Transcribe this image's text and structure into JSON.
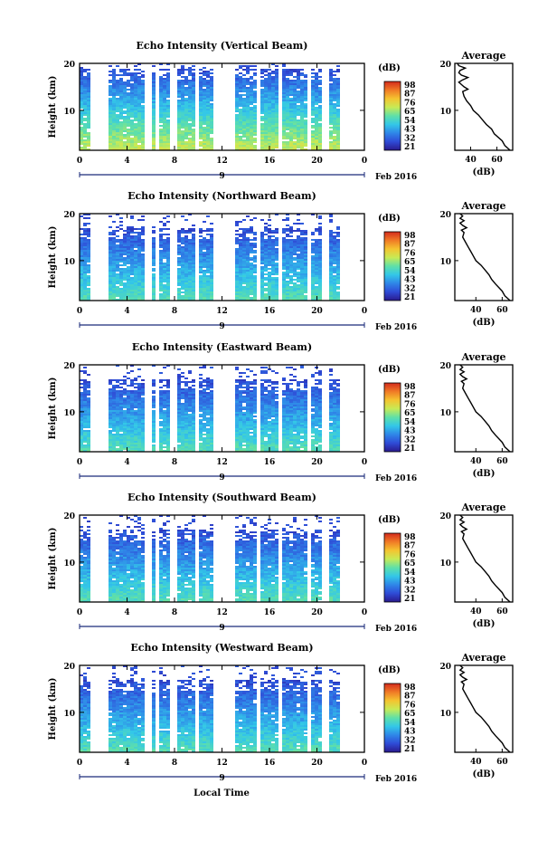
{
  "figure": {
    "colorbar_unit": "(dB)",
    "colorbar_ticks": [
      "98",
      "87",
      "76",
      "65",
      "54",
      "43",
      "32",
      "21"
    ],
    "average_title": "Average",
    "average_xlabel": "(dB)",
    "ylabel": "Height (km)",
    "hour_ticks": [
      "0",
      "4",
      "8",
      "12",
      "16",
      "20",
      "0"
    ],
    "date_label": "9",
    "month_label": "Feb 2016",
    "xlabel": "Local Time",
    "colorscale": [
      "#2a1a8c",
      "#2f4bd6",
      "#2f86e8",
      "#33c7e8",
      "#5fe0a8",
      "#c8ea55",
      "#f4c430",
      "#f07a26",
      "#d42a1c"
    ]
  },
  "chart_data": [
    {
      "type": "heatmap",
      "title": "Echo Intensity (Vertical Beam)",
      "ylabel": "Height (km)",
      "y_ticks": [
        "20",
        "10"
      ],
      "ylim": [
        1.5,
        20
      ],
      "x_ticks": [
        "0",
        "4",
        "8",
        "12",
        "16",
        "20",
        "0"
      ],
      "xlim_hours": [
        0,
        24
      ],
      "color_range_db": [
        21,
        98
      ],
      "data_gaps_hours": [
        [
          1.0,
          2.4
        ],
        [
          5.5,
          6.0
        ],
        [
          6.4,
          6.8
        ],
        [
          7.5,
          8.1
        ],
        [
          9.8,
          10.2
        ],
        [
          11.2,
          13.0
        ],
        [
          14.8,
          15.2
        ],
        [
          16.8,
          17.2
        ],
        [
          19.2,
          19.6
        ],
        [
          20.5,
          20.9
        ],
        [
          22.0,
          24.0
        ]
      ],
      "noise_top_km": 19,
      "surface_db": 70,
      "average_profile": {
        "title": "Average",
        "xlabel": "(dB)",
        "x_ticks": [
          "40",
          "60"
        ],
        "y_ticks": [
          "20",
          "10"
        ],
        "xlim": [
          28,
          72
        ],
        "ylim": [
          1.5,
          20
        ],
        "height_km": [
          1.5,
          2.5,
          3.5,
          5,
          6,
          7,
          8,
          9,
          10,
          11,
          12,
          13,
          14,
          14.5,
          15,
          15.5,
          16,
          16.5,
          17,
          17.5,
          18,
          18.5,
          19,
          19.5,
          20
        ],
        "db": [
          70,
          66,
          64,
          58,
          56,
          52,
          49,
          46,
          42,
          40,
          37,
          35,
          34,
          38,
          35,
          33,
          31,
          34,
          38,
          33,
          31,
          32,
          36,
          31,
          30
        ]
      }
    },
    {
      "type": "heatmap",
      "title": "Echo Intensity (Northward Beam)",
      "ylabel": "Height (km)",
      "y_ticks": [
        "20",
        "10"
      ],
      "ylim": [
        1.5,
        20
      ],
      "x_ticks": [
        "0",
        "4",
        "8",
        "12",
        "16",
        "20",
        "0"
      ],
      "xlim_hours": [
        0,
        24
      ],
      "color_range_db": [
        21,
        98
      ],
      "data_gaps_hours": [
        [
          1.0,
          2.4
        ],
        [
          5.5,
          6.0
        ],
        [
          6.4,
          6.8
        ],
        [
          7.5,
          8.1
        ],
        [
          9.8,
          10.2
        ],
        [
          11.2,
          13.0
        ],
        [
          14.8,
          15.2
        ],
        [
          16.8,
          17.2
        ],
        [
          19.2,
          19.6
        ],
        [
          20.5,
          20.9
        ],
        [
          22.0,
          24.0
        ]
      ],
      "noise_top_km": 17,
      "surface_db": 58,
      "average_profile": {
        "title": "Average",
        "xlabel": "(dB)",
        "x_ticks": [
          "40",
          "60"
        ],
        "y_ticks": [
          "20",
          "10"
        ],
        "xlim": [
          24,
          68
        ],
        "ylim": [
          1.5,
          20
        ],
        "height_km": [
          1.5,
          2.5,
          3.5,
          5,
          6,
          7,
          8,
          9,
          10,
          11,
          12,
          13,
          14,
          15,
          16,
          16.5,
          17,
          17.5,
          18,
          18.5,
          19,
          19.5,
          20
        ],
        "db": [
          66,
          62,
          60,
          55,
          52,
          50,
          47,
          44,
          40,
          38,
          36,
          34,
          32,
          30,
          31,
          29,
          33,
          30,
          28,
          31,
          28,
          30,
          28
        ]
      }
    },
    {
      "type": "heatmap",
      "title": "Echo Intensity (Eastward Beam)",
      "ylabel": "Height (km)",
      "y_ticks": [
        "20",
        "10"
      ],
      "ylim": [
        1.5,
        20
      ],
      "x_ticks": [
        "0",
        "4",
        "8",
        "12",
        "16",
        "20",
        "0"
      ],
      "xlim_hours": [
        0,
        24
      ],
      "color_range_db": [
        21,
        98
      ],
      "data_gaps_hours": [
        [
          1.0,
          2.4
        ],
        [
          5.5,
          6.0
        ],
        [
          6.4,
          6.8
        ],
        [
          7.5,
          8.1
        ],
        [
          9.8,
          10.2
        ],
        [
          11.2,
          13.0
        ],
        [
          14.8,
          15.2
        ],
        [
          16.8,
          17.2
        ],
        [
          19.2,
          19.6
        ],
        [
          20.5,
          20.9
        ],
        [
          22.0,
          24.0
        ]
      ],
      "noise_top_km": 17,
      "surface_db": 58,
      "average_profile": {
        "title": "Average",
        "xlabel": "(dB)",
        "x_ticks": [
          "40",
          "60"
        ],
        "y_ticks": [
          "20",
          "10"
        ],
        "xlim": [
          24,
          68
        ],
        "ylim": [
          1.5,
          20
        ],
        "height_km": [
          1.5,
          2.5,
          3.5,
          5,
          6,
          7,
          8,
          9,
          10,
          11,
          12,
          13,
          14,
          15,
          16,
          16.5,
          17,
          17.5,
          18,
          18.5,
          19,
          19.5,
          20
        ],
        "db": [
          66,
          62,
          60,
          55,
          52,
          50,
          47,
          44,
          40,
          38,
          36,
          34,
          32,
          30,
          31,
          29,
          33,
          30,
          28,
          31,
          28,
          30,
          28
        ]
      }
    },
    {
      "type": "heatmap",
      "title": "Echo Intensity (Southward Beam)",
      "ylabel": "Height (km)",
      "y_ticks": [
        "20",
        "10"
      ],
      "ylim": [
        1.5,
        20
      ],
      "x_ticks": [
        "0",
        "4",
        "8",
        "12",
        "16",
        "20",
        "0"
      ],
      "xlim_hours": [
        0,
        24
      ],
      "color_range_db": [
        21,
        98
      ],
      "data_gaps_hours": [
        [
          1.0,
          2.4
        ],
        [
          5.5,
          6.0
        ],
        [
          6.4,
          6.8
        ],
        [
          7.5,
          8.1
        ],
        [
          9.8,
          10.2
        ],
        [
          11.2,
          13.0
        ],
        [
          14.8,
          15.2
        ],
        [
          16.8,
          17.2
        ],
        [
          19.2,
          19.6
        ],
        [
          20.5,
          20.9
        ],
        [
          22.0,
          24.0
        ]
      ],
      "noise_top_km": 17,
      "surface_db": 58,
      "average_profile": {
        "title": "Average",
        "xlabel": "(dB)",
        "x_ticks": [
          "40",
          "60"
        ],
        "y_ticks": [
          "20",
          "10"
        ],
        "xlim": [
          24,
          68
        ],
        "ylim": [
          1.5,
          20
        ],
        "height_km": [
          1.5,
          2.5,
          3.5,
          5,
          6,
          7,
          8,
          9,
          10,
          11,
          12,
          13,
          14,
          15,
          16,
          16.5,
          17,
          17.5,
          18,
          18.5,
          19,
          19.5,
          20
        ],
        "db": [
          66,
          62,
          60,
          55,
          52,
          50,
          47,
          44,
          40,
          38,
          36,
          34,
          32,
          30,
          31,
          29,
          33,
          30,
          28,
          31,
          28,
          30,
          28
        ]
      }
    },
    {
      "type": "heatmap",
      "title": "Echo Intensity (Westward Beam)",
      "ylabel": "Height (km)",
      "y_ticks": [
        "20",
        "10"
      ],
      "ylim": [
        1.5,
        20
      ],
      "x_ticks": [
        "0",
        "4",
        "8",
        "12",
        "16",
        "20",
        "0"
      ],
      "xlim_hours": [
        0,
        24
      ],
      "color_range_db": [
        21,
        98
      ],
      "data_gaps_hours": [
        [
          1.0,
          2.4
        ],
        [
          5.5,
          6.0
        ],
        [
          6.4,
          6.8
        ],
        [
          7.5,
          8.1
        ],
        [
          9.8,
          10.2
        ],
        [
          11.2,
          13.0
        ],
        [
          14.8,
          15.2
        ],
        [
          16.8,
          17.2
        ],
        [
          19.2,
          19.6
        ],
        [
          20.5,
          20.9
        ],
        [
          22.0,
          24.0
        ]
      ],
      "noise_top_km": 17,
      "surface_db": 58,
      "average_profile": {
        "title": "Average",
        "xlabel": "(dB)",
        "x_ticks": [
          "40",
          "60"
        ],
        "y_ticks": [
          "20",
          "10"
        ],
        "xlim": [
          24,
          68
        ],
        "ylim": [
          1.5,
          20
        ],
        "height_km": [
          1.5,
          2.5,
          3.5,
          5,
          6,
          7,
          8,
          9,
          10,
          11,
          12,
          13,
          14,
          15,
          16,
          16.5,
          17,
          17.5,
          18,
          18.5,
          19,
          19.5,
          20
        ],
        "db": [
          66,
          62,
          60,
          55,
          52,
          50,
          47,
          44,
          40,
          38,
          36,
          34,
          32,
          30,
          31,
          29,
          33,
          30,
          28,
          31,
          28,
          30,
          28
        ]
      }
    }
  ]
}
